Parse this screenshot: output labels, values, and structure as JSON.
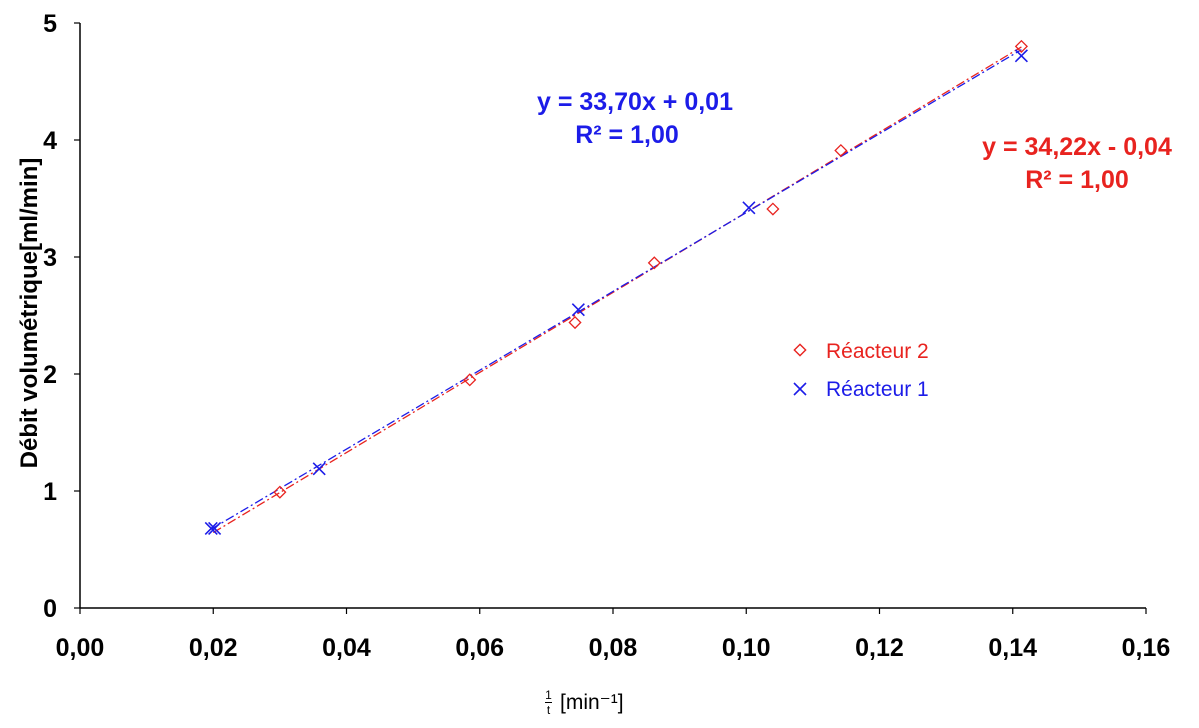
{
  "chart_data": {
    "type": "scatter",
    "title": "",
    "xlabel_fraction": {
      "numerator": "1",
      "denominator": "t"
    },
    "xlabel_unit": "[min⁻¹]",
    "ylabel": "Débit volumétrique[ml/min]",
    "xlim": [
      0,
      0.16
    ],
    "ylim": [
      0,
      5
    ],
    "x_ticks": [
      0.0,
      0.02,
      0.04,
      0.06,
      0.08,
      0.1,
      0.12,
      0.14,
      0.16
    ],
    "x_tick_labels": [
      "0,00",
      "0,02",
      "0,04",
      "0,06",
      "0,08",
      "0,10",
      "0,12",
      "0,14",
      "0,16"
    ],
    "y_ticks": [
      0,
      1,
      2,
      3,
      4,
      5
    ],
    "y_tick_labels": [
      "0",
      "1",
      "2",
      "3",
      "4",
      "5"
    ],
    "grid": false,
    "legend_position": "right-center",
    "series": [
      {
        "name": "Réacteur 2",
        "marker": "diamond",
        "color": "#e8231f",
        "points": [
          [
            0.03,
            0.99
          ],
          [
            0.0585,
            1.95
          ],
          [
            0.0743,
            2.44
          ],
          [
            0.0862,
            2.95
          ],
          [
            0.104,
            3.41
          ],
          [
            0.1142,
            3.91
          ],
          [
            0.1413,
            4.8
          ]
        ],
        "fit": {
          "slope": 34.22,
          "intercept": -0.04,
          "x_range": [
            0.02,
            0.1413
          ]
        },
        "equation": "y = 34,22x - 0,04",
        "r2": "R² = 1,00"
      },
      {
        "name": "Réacteur 1",
        "marker": "x",
        "color": "#1c1ce8",
        "points": [
          [
            0.0197,
            0.68
          ],
          [
            0.0202,
            0.68
          ],
          [
            0.0359,
            1.19
          ],
          [
            0.0748,
            2.55
          ],
          [
            0.1004,
            3.42
          ],
          [
            0.1413,
            4.72
          ]
        ],
        "fit": {
          "slope": 33.7,
          "intercept": 0.01,
          "x_range": [
            0.0197,
            0.1413
          ]
        },
        "equation": "y = 33,70x + 0,01",
        "r2": "R² = 1,00"
      }
    ]
  }
}
